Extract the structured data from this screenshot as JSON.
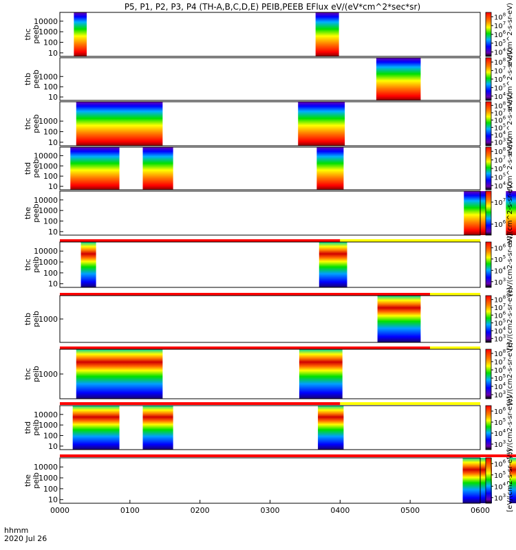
{
  "chart_data": {
    "type": "heatmap",
    "title": "P5, P1, P2, P3, P4 (TH-A,B,C,D,E) PEIB,PEEB EFlux eV/(eV*cm^2*sec*sr)",
    "x_axis": {
      "unit_label": "hhmm",
      "date_label": "2020 Jul 26",
      "ticks": [
        "0000",
        "0100",
        "0200",
        "0300",
        "0400",
        "0500",
        "0600"
      ],
      "range_minutes": [
        0,
        360
      ]
    },
    "colorbar_unit_electron": "eV/(cm^2-s-sr-eV)",
    "colorbar_unit_ion": "[eV/(cm2-s-sr-eV)]",
    "colorbar_scale": "log",
    "flag_bar_colors": {
      "red": "#ff0000",
      "yellow": "#ffff00"
    },
    "panels": [
      {
        "name": "thc peeb",
        "ylabel": [
          "thc",
          "peeb"
        ],
        "yscale": "log",
        "ytick_labels": [
          "10",
          "100",
          "1000",
          "10000"
        ],
        "cbar_ticks": [
          "10^4",
          "10^5",
          "10^6",
          "10^7",
          "10^8"
        ],
        "intervals_minutes": [
          [
            12,
            23
          ],
          [
            219,
            239
          ]
        ],
        "profile": "electron"
      },
      {
        "name": "thb peeb",
        "ylabel": [
          "thb",
          "peeb"
        ],
        "yscale": "log",
        "ytick_labels": [
          "10",
          "100",
          "1000"
        ],
        "cbar_ticks": [
          "10^4",
          "10^5",
          "10^6",
          "10^7",
          "10^8"
        ],
        "intervals_minutes": [
          [
            271,
            309
          ]
        ],
        "profile": "electron"
      },
      {
        "name": "thc peeb",
        "ylabel": [
          "thc",
          "peeb"
        ],
        "yscale": "log",
        "ytick_labels": [
          "10",
          "100",
          "1000"
        ],
        "cbar_ticks": [
          "10^3",
          "10^4",
          "10^5",
          "10^6",
          "10^7",
          "10^8"
        ],
        "intervals_minutes": [
          [
            14,
            88
          ],
          [
            204,
            244
          ]
        ],
        "profile": "electron"
      },
      {
        "name": "thd peeb",
        "ylabel": [
          "thd",
          "peeb"
        ],
        "yscale": "log",
        "ytick_labels": [
          "10",
          "100",
          "1000",
          "10000"
        ],
        "cbar_ticks": [
          "10^4",
          "10^5",
          "10^6",
          "10^7",
          "10^8"
        ],
        "intervals_minutes": [
          [
            9,
            51
          ],
          [
            71,
            97
          ],
          [
            220,
            243
          ]
        ],
        "profile": "electron"
      },
      {
        "name": "the peeb",
        "ylabel": [
          "the",
          "peeb"
        ],
        "yscale": "log",
        "ytick_labels": [
          "10",
          "100",
          "1000",
          "10000"
        ],
        "cbar_ticks": [
          "10^6",
          "10^7"
        ],
        "intervals_minutes": [
          [
            346,
            366
          ],
          [
            382,
            419
          ],
          [
            461,
            475
          ]
        ],
        "profile": "electron"
      },
      {
        "name": "thc peib",
        "ylabel": [
          "thc",
          "peib"
        ],
        "yscale": "log",
        "ytick_labels": [
          "10",
          "100",
          "1000",
          "10000"
        ],
        "cbar_ticks": [
          "10^3",
          "10^4",
          "10^5",
          "10^6"
        ],
        "intervals_minutes": [
          [
            18,
            31
          ],
          [
            222,
            246
          ]
        ],
        "profile": "ion",
        "flag_red_until_minutes": 240
      },
      {
        "name": "thb peib",
        "ylabel": [
          "thb",
          "peib"
        ],
        "yscale": "log",
        "ytick_labels": [
          "1000"
        ],
        "cbar_ticks": [
          "10^3",
          "10^4",
          "10^5",
          "10^6",
          "10^7",
          "10^8"
        ],
        "intervals_minutes": [
          [
            272,
            309
          ]
        ],
        "profile": "ion",
        "flag_red_until_minutes": 317
      },
      {
        "name": "thc peib",
        "ylabel": [
          "thc",
          "peib"
        ],
        "yscale": "log",
        "ytick_labels": [
          "1000"
        ],
        "cbar_ticks": [
          "10^3",
          "10^4",
          "10^5",
          "10^6",
          "10^7",
          "10^8"
        ],
        "intervals_minutes": [
          [
            14,
            88
          ],
          [
            205,
            242
          ]
        ],
        "profile": "ion",
        "flag_red_until_minutes": 317
      },
      {
        "name": "thd peib",
        "ylabel": [
          "thd",
          "peib"
        ],
        "yscale": "log",
        "ytick_labels": [
          "10",
          "100",
          "1000",
          "10000"
        ],
        "cbar_ticks": [
          "10^3",
          "10^4",
          "10^5",
          "10^6"
        ],
        "intervals_minutes": [
          [
            11,
            51
          ],
          [
            71,
            97
          ],
          [
            221,
            243
          ]
        ],
        "profile": "ion",
        "flag_red_until_minutes": 240
      },
      {
        "name": "the peib",
        "ylabel": [
          "the",
          "peib"
        ],
        "yscale": "log",
        "ytick_labels": [
          "10",
          "100",
          "1000",
          "10000"
        ],
        "cbar_ticks": [
          "10^3",
          "10^4",
          "10^5",
          "10^6"
        ],
        "intervals_minutes": [
          [
            345,
            370
          ],
          [
            385,
            425
          ],
          [
            460,
            478
          ]
        ],
        "profile": "ion",
        "flag_red_until_minutes": 482
      }
    ]
  }
}
